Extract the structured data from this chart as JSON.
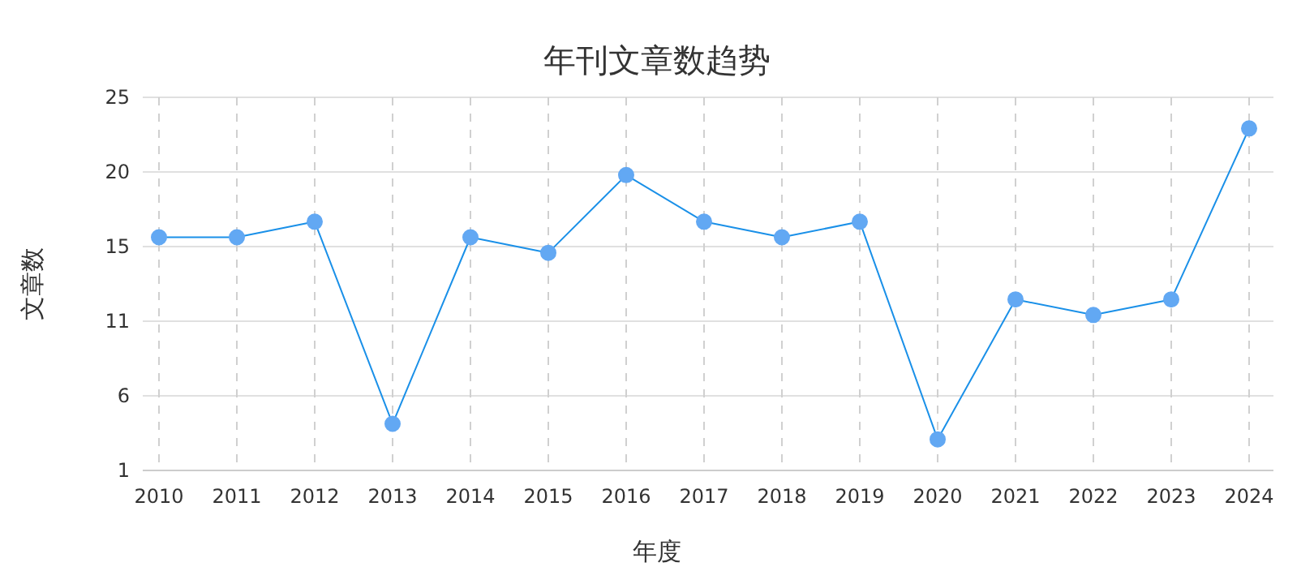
{
  "chart_data": {
    "type": "line",
    "title": "年刊文章数趋势",
    "xlabel": "年度",
    "ylabel": "文章数",
    "categories": [
      "2010",
      "2011",
      "2012",
      "2013",
      "2014",
      "2015",
      "2016",
      "2017",
      "2018",
      "2019",
      "2020",
      "2021",
      "2022",
      "2023",
      "2024"
    ],
    "series": [
      {
        "color": "#1a90e8",
        "values": [
          16,
          16,
          17,
          4,
          16,
          15,
          20,
          17,
          16,
          17,
          3,
          12,
          11,
          12,
          23
        ]
      }
    ],
    "ylim": [
      1,
      25
    ],
    "yticks": [
      1,
      {
        "value": 5.8,
        "label": "6"
      },
      {
        "value": 10.6,
        "label": "11"
      },
      {
        "value": 15.4,
        "label": "15"
      },
      {
        "value": 20.2,
        "label": "20"
      },
      25
    ],
    "grid": true,
    "marker": "circle",
    "line_style": "solid"
  }
}
